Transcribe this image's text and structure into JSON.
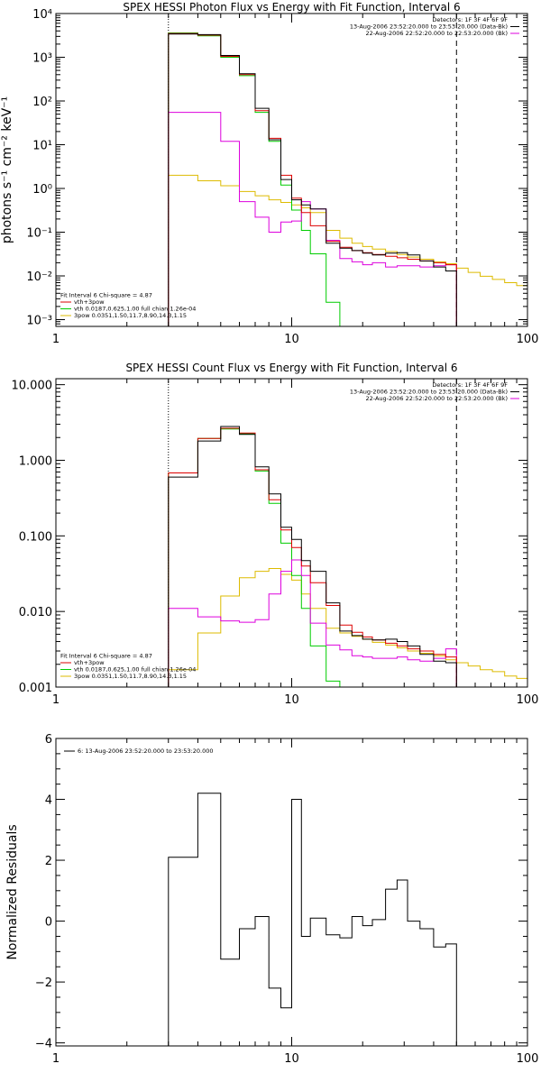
{
  "chart_data": [
    {
      "type": "line",
      "title": "SPEX HESSI Photon Flux vs Energy with Fit Function, Interval 6",
      "ylabel": "photons s⁻¹ cm⁻² keV⁻¹",
      "xlabel": "",
      "xscale": "log",
      "yscale": "log",
      "xlim": [
        1,
        100
      ],
      "ylim": [
        0.0007,
        10000
      ],
      "x_ticks": [
        "1",
        "10",
        "100"
      ],
      "y_ticks": [
        "10⁻³",
        "10⁻²",
        "10⁻¹",
        "10⁰",
        "10¹",
        "10²",
        "10³",
        "10⁴"
      ],
      "y_tick_values": [
        0.001,
        0.01,
        0.1,
        1,
        10,
        100,
        1000,
        10000
      ],
      "fit_range_lines": [
        3,
        50
      ],
      "legend_top_right": [
        {
          "text": "Detectors: 1F 3F 4F 6F 9F",
          "color": "#000000"
        },
        {
          "text": "13-Aug-2006 23:52:20.000 to 23:53:20.000 (Data-Bk)",
          "color": "#000000"
        },
        {
          "text": "22-Aug-2006 22:52:20.000 to 22:53:20.000 (Bk)",
          "color": "#dd00dd"
        }
      ],
      "legend_bottom_left": [
        {
          "text": "Fit Interval 6   Chi-square = 4.87",
          "color": "#000000"
        },
        {
          "text": "vth+3pow",
          "color": "#dd0000"
        },
        {
          "text": "vth 0.0187,0.625,1.00  full chian 1.26e-04",
          "color": "#00cc00"
        },
        {
          "text": "3pow 0.0351,1.50,11.7,8.90,14.3,1.15",
          "color": "#ddbb00"
        }
      ],
      "series": [
        {
          "name": "Data-Bk",
          "color": "#000000",
          "edges": [
            3,
            4,
            5,
            6,
            7,
            8,
            9,
            10,
            11,
            12,
            14,
            16,
            18,
            20,
            22,
            25,
            28,
            31,
            35,
            40,
            45,
            50
          ],
          "values": [
            3400,
            3300,
            1100,
            420,
            68,
            13,
            1.6,
            0.55,
            0.42,
            0.34,
            0.056,
            0.043,
            0.038,
            0.033,
            0.03,
            0.033,
            0.034,
            0.03,
            0.022,
            0.016,
            0.013
          ]
        },
        {
          "name": "vth+3pow",
          "color": "#dd0000",
          "edges": [
            3,
            4,
            5,
            6,
            7,
            8,
            9,
            10,
            11,
            12,
            14,
            16,
            18,
            20,
            22,
            25,
            28,
            31,
            35,
            40,
            45,
            50
          ],
          "values": [
            3500,
            3200,
            1050,
            400,
            60,
            14,
            2.0,
            0.6,
            0.28,
            0.14,
            0.062,
            0.045,
            0.038,
            0.034,
            0.031,
            0.028,
            0.026,
            0.024,
            0.022,
            0.02,
            0.018
          ]
        },
        {
          "name": "vth",
          "color": "#00cc00",
          "edges": [
            3,
            4,
            5,
            6,
            7,
            8,
            9,
            10,
            11,
            12,
            14,
            16
          ],
          "values": [
            3600,
            3100,
            1000,
            380,
            55,
            12,
            1.2,
            0.32,
            0.11,
            0.032,
            0.0025
          ]
        },
        {
          "name": "3pow",
          "color": "#ddbb00",
          "edges": [
            3,
            4,
            5,
            6,
            7,
            8,
            9,
            10,
            11,
            12,
            14,
            16,
            18,
            20,
            22,
            25,
            28,
            31,
            35,
            40,
            45,
            50,
            56,
            63,
            71,
            80,
            90,
            100
          ],
          "values": [
            2.0,
            1.5,
            1.15,
            0.85,
            0.68,
            0.55,
            0.48,
            0.42,
            0.36,
            0.28,
            0.11,
            0.073,
            0.056,
            0.047,
            0.041,
            0.036,
            0.031,
            0.027,
            0.024,
            0.021,
            0.019,
            0.015,
            0.012,
            0.0098,
            0.0083,
            0.007,
            0.006
          ]
        },
        {
          "name": "Bk",
          "color": "#dd00dd",
          "edges": [
            3,
            4,
            5,
            6,
            7,
            8,
            9,
            10,
            11,
            12,
            14,
            16,
            18,
            20,
            22,
            25,
            28,
            31,
            35,
            40,
            45,
            50
          ],
          "values": [
            55,
            55,
            12,
            0.5,
            0.22,
            0.1,
            0.17,
            0.18,
            0.5,
            0.34,
            0.065,
            0.025,
            0.021,
            0.018,
            0.02,
            0.016,
            0.017,
            0.017,
            0.016,
            0.017,
            0.018
          ]
        }
      ]
    },
    {
      "type": "line",
      "title": "SPEX HESSI Count Flux vs Energy with Fit Function, Interval 6",
      "xlabel": "",
      "ylabel": "",
      "xscale": "log",
      "yscale": "log",
      "xlim": [
        1,
        100
      ],
      "ylim": [
        0.001,
        12
      ],
      "x_ticks": [
        "1",
        "10",
        "100"
      ],
      "y_ticks": [
        "0.001",
        "0.010",
        "0.100",
        "1.000",
        "10.000"
      ],
      "y_tick_values": [
        0.001,
        0.01,
        0.1,
        1,
        10
      ],
      "fit_range_lines": [
        3,
        50
      ],
      "legend_top_right": [
        {
          "text": "Detectors: 1F 3F 4F 6F 9F",
          "color": "#000000"
        },
        {
          "text": "13-Aug-2006 23:52:20.000 to 23:53:20.000 (Data-Bk)",
          "color": "#000000"
        },
        {
          "text": "22-Aug-2006 22:52:20.000 to 22:53:20.000 (Bk)",
          "color": "#dd00dd"
        }
      ],
      "legend_bottom_left": [
        {
          "text": "Fit Interval 6   Chi-square = 4.87",
          "color": "#000000"
        },
        {
          "text": "vth+3pow",
          "color": "#dd0000"
        },
        {
          "text": "vth 0.0187,0.625,1.00  full chian 1.26e-04",
          "color": "#00cc00"
        },
        {
          "text": "3pow 0.0351,1.50,11.7,8.90,14.3,1.15",
          "color": "#ddbb00"
        }
      ],
      "series": [
        {
          "name": "Data-Bk",
          "color": "#000000",
          "edges": [
            3,
            4,
            5,
            6,
            7,
            8,
            9,
            10,
            11,
            12,
            14,
            16,
            18,
            20,
            22,
            25,
            28,
            31,
            35,
            40,
            45,
            50
          ],
          "values": [
            0.6,
            1.8,
            2.8,
            2.2,
            0.82,
            0.36,
            0.13,
            0.09,
            0.047,
            0.034,
            0.013,
            0.0055,
            0.0048,
            0.0043,
            0.0042,
            0.0043,
            0.004,
            0.0035,
            0.0027,
            0.0022,
            0.0021
          ]
        },
        {
          "name": "vth+3pow",
          "color": "#dd0000",
          "edges": [
            3,
            4,
            5,
            6,
            7,
            8,
            9,
            10,
            11,
            12,
            14,
            16,
            18,
            20,
            22,
            25,
            28,
            31,
            35,
            40,
            45,
            50
          ],
          "values": [
            0.68,
            1.95,
            2.65,
            2.3,
            0.75,
            0.3,
            0.12,
            0.07,
            0.04,
            0.024,
            0.012,
            0.0066,
            0.0053,
            0.0046,
            0.0042,
            0.0038,
            0.0035,
            0.0032,
            0.003,
            0.0027,
            0.0025
          ]
        },
        {
          "name": "vth",
          "color": "#00cc00",
          "edges": [
            3,
            4,
            5,
            6,
            7,
            8,
            9,
            10,
            11,
            12,
            14,
            16
          ],
          "values": [
            0.68,
            1.95,
            2.6,
            2.25,
            0.72,
            0.27,
            0.08,
            0.03,
            0.011,
            0.0035,
            0.0012
          ]
        },
        {
          "name": "3pow",
          "color": "#ddbb00",
          "edges": [
            3,
            4,
            5,
            6,
            7,
            8,
            9,
            10,
            11,
            12,
            14,
            16,
            18,
            20,
            22,
            25,
            28,
            31,
            35,
            40,
            45,
            50,
            56,
            63,
            71,
            80,
            90,
            100
          ],
          "values": [
            0.0017,
            0.0052,
            0.016,
            0.028,
            0.034,
            0.037,
            0.031,
            0.026,
            0.017,
            0.011,
            0.006,
            0.0052,
            0.0047,
            0.0043,
            0.0039,
            0.0036,
            0.0033,
            0.003,
            0.0028,
            0.0026,
            0.0023,
            0.0021,
            0.0019,
            0.0017,
            0.0016,
            0.0014,
            0.0013
          ]
        },
        {
          "name": "Bk",
          "color": "#dd00dd",
          "edges": [
            3,
            4,
            5,
            6,
            7,
            8,
            9,
            10,
            11,
            12,
            14,
            16,
            18,
            20,
            22,
            25,
            28,
            31,
            35,
            40,
            45,
            50
          ],
          "values": [
            0.011,
            0.0085,
            0.0075,
            0.0072,
            0.0078,
            0.017,
            0.034,
            0.048,
            0.03,
            0.007,
            0.0036,
            0.0031,
            0.0026,
            0.0025,
            0.0024,
            0.0024,
            0.0025,
            0.0023,
            0.0022,
            0.0024,
            0.0032
          ]
        }
      ]
    },
    {
      "type": "line",
      "title": "",
      "ylabel": "Normalized Residuals",
      "xlabel": "",
      "xscale": "log",
      "yscale": "linear",
      "xlim": [
        1,
        100
      ],
      "ylim": [
        -4.1,
        6
      ],
      "x_ticks": [
        "1",
        "10",
        "100"
      ],
      "y_ticks": [
        "−4",
        "−2",
        "0",
        "2",
        "4",
        "6"
      ],
      "y_tick_values": [
        -4,
        -2,
        0,
        2,
        4,
        6
      ],
      "legend_top_left": [
        {
          "text": "6: 13-Aug-2006 23:52:20.000 to 23:53:20.000",
          "color": "#000000"
        }
      ],
      "series": [
        {
          "name": "",
          "color": "#000000",
          "edges": [
            3,
            4,
            5,
            6,
            7,
            8,
            9,
            10,
            11,
            12,
            14,
            16,
            18,
            20,
            22,
            25,
            28,
            31,
            35,
            40,
            45,
            50
          ],
          "values": [
            2.1,
            4.2,
            -1.25,
            -0.25,
            0.15,
            -2.2,
            -2.85,
            4.0,
            -0.5,
            0.1,
            -0.45,
            -0.55,
            0.15,
            -0.15,
            0.05,
            1.05,
            1.35,
            0.0,
            -0.25,
            -0.85,
            -0.75
          ]
        }
      ]
    }
  ]
}
